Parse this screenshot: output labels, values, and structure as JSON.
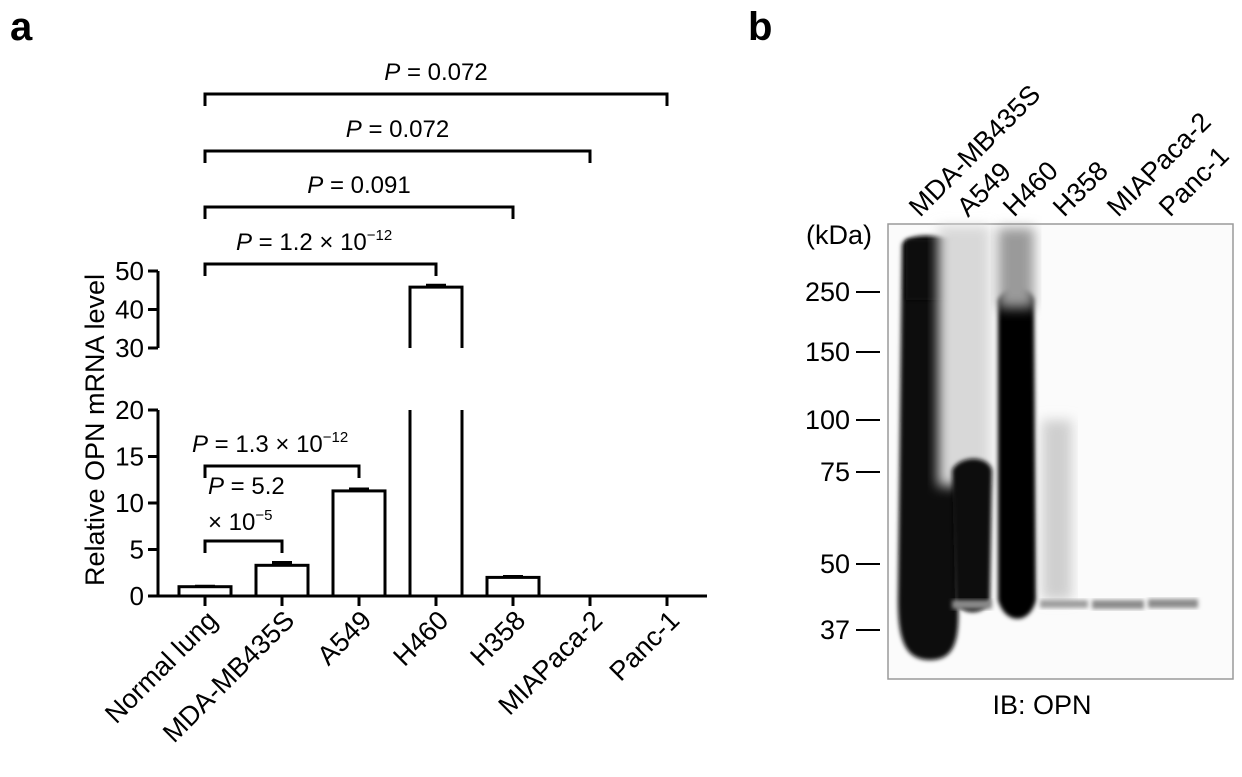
{
  "panel_a": {
    "label": "a",
    "chart_data": {
      "type": "bar",
      "ylabel": "Relative OPN mRNA level",
      "categories": [
        "Normal lung",
        "MDA-MB435S",
        "A549",
        "H460",
        "H358",
        "MIAPaca-2",
        "Panc-1"
      ],
      "values": [
        1.0,
        3.3,
        11.3,
        45.8,
        2.0,
        0.0,
        0.0
      ],
      "errors": [
        0.05,
        0.3,
        0.2,
        0.5,
        0.1,
        0.0,
        0.0
      ],
      "y_axis_broken": true,
      "lower_segment": {
        "ylim": [
          0,
          20
        ],
        "ticks": [
          "0",
          "5",
          "10",
          "15",
          "20"
        ]
      },
      "upper_segment": {
        "ylim": [
          30,
          50
        ],
        "ticks": [
          "30",
          "40",
          "50"
        ]
      },
      "comparisons": [
        {
          "from": "Normal lung",
          "to": "Panc-1",
          "p": "0.072"
        },
        {
          "from": "Normal lung",
          "to": "MIAPaca-2",
          "p": "0.072"
        },
        {
          "from": "Normal lung",
          "to": "H358",
          "p": "0.091"
        },
        {
          "from": "Normal lung",
          "to": "H460",
          "p_mantissa": "1.2 × 10",
          "p_exp": "−12"
        },
        {
          "from": "Normal lung",
          "to": "A549",
          "p_mantissa": "1.3 × 10",
          "p_exp": "−12"
        },
        {
          "from": "Normal lung",
          "to": "MDA-MB435S",
          "p_line1": "5.2",
          "p_line2": "× 10",
          "p_exp": "−5"
        }
      ],
      "p_symbol": "P",
      "equals": " = "
    }
  },
  "panel_b": {
    "label": "b",
    "lanes": [
      "MDA-MB435S",
      "A549",
      "H460",
      "H358",
      "MIAPaca-2",
      "Panc-1"
    ],
    "unit_label": "(kDa)",
    "markers": [
      "250",
      "150",
      "100",
      "75",
      "50",
      "37"
    ],
    "footer": "IB: OPN"
  }
}
